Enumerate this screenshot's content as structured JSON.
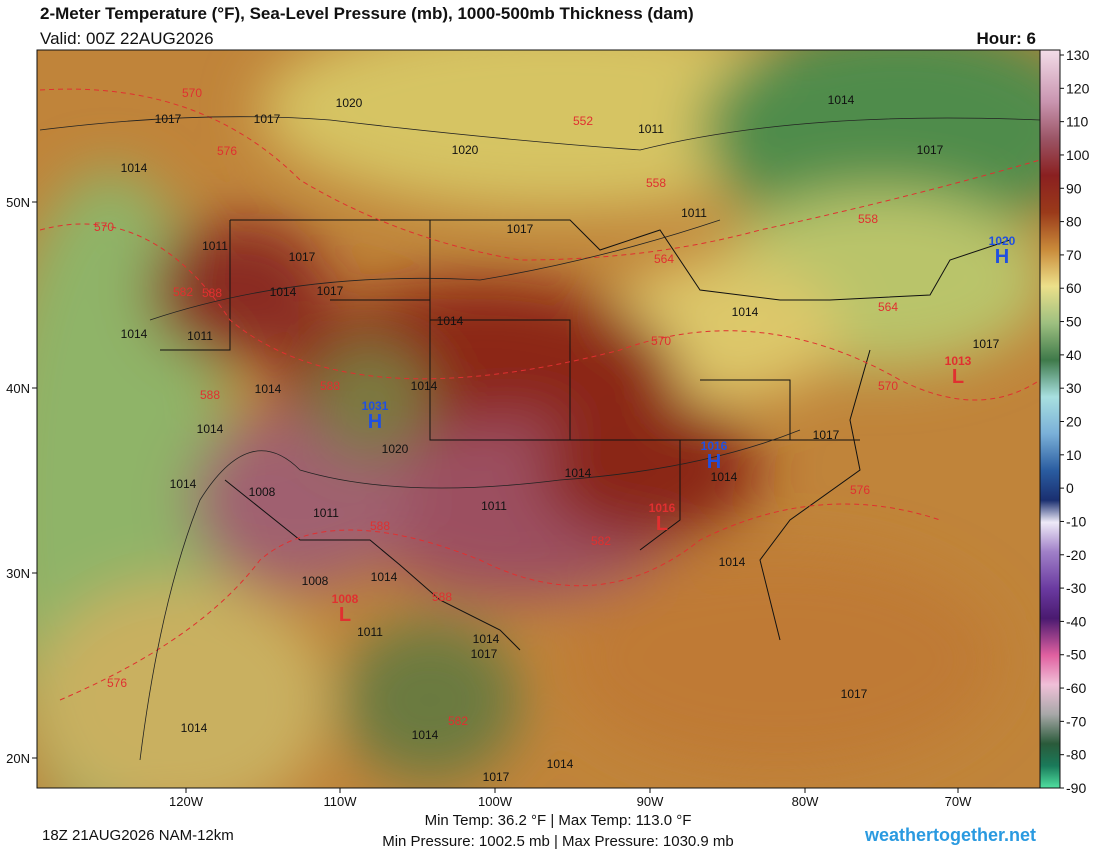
{
  "header": {
    "title": "2-Meter Temperature (°F), Sea-Level Pressure (mb), 1000-500mb Thickness (dam)",
    "valid": "Valid: 00Z 22AUG2026",
    "hour": "Hour: 6"
  },
  "colorbar": {
    "ticks": [
      130,
      120,
      110,
      100,
      90,
      80,
      70,
      60,
      50,
      40,
      30,
      20,
      10,
      0,
      -10,
      -20,
      -30,
      -40,
      -50,
      -60,
      -70,
      -80,
      -90
    ]
  },
  "axes": {
    "lat_labels": [
      "50N",
      "40N",
      "30N",
      "20N"
    ],
    "lon_labels": [
      "120W",
      "110W",
      "100W",
      "90W",
      "80W",
      "70W"
    ]
  },
  "isobar_labels": [
    "1017",
    "1017",
    "1020",
    "1014",
    "1011",
    "1020",
    "1017",
    "1014",
    "1011",
    "1017",
    "1011",
    "1017",
    "1014",
    "1017",
    "1014",
    "1014",
    "1011",
    "1014",
    "1017",
    "1014",
    "1014",
    "1014",
    "1017",
    "1020",
    "1014",
    "1014",
    "1014",
    "1008",
    "1011",
    "1011",
    "1008",
    "1014",
    "1014",
    "1011",
    "1014",
    "1017",
    "1017",
    "1014",
    "1014",
    "1014",
    "1017"
  ],
  "thickness_labels": [
    "570",
    "552",
    "576",
    "558",
    "570",
    "558",
    "564",
    "582",
    "588",
    "564",
    "570",
    "588",
    "588",
    "570",
    "576",
    "588",
    "582",
    "588",
    "576",
    "582"
  ],
  "pressure_centers": [
    {
      "type": "H",
      "value": "1020"
    },
    {
      "type": "H",
      "value": "1031"
    },
    {
      "type": "H",
      "value": "1016"
    },
    {
      "type": "L",
      "value": "1013"
    },
    {
      "type": "L",
      "value": "1016"
    },
    {
      "type": "L",
      "value": "1008"
    }
  ],
  "footer": {
    "run": "18Z 21AUG2026 NAM-12km",
    "temps": "Min Temp:  36.2 °F | Max Temp: 113.0 °F",
    "pressures": "Min Pressure: 1002.5 mb | Max Pressure: 1030.9 mb",
    "site": "weathertogether.net"
  }
}
